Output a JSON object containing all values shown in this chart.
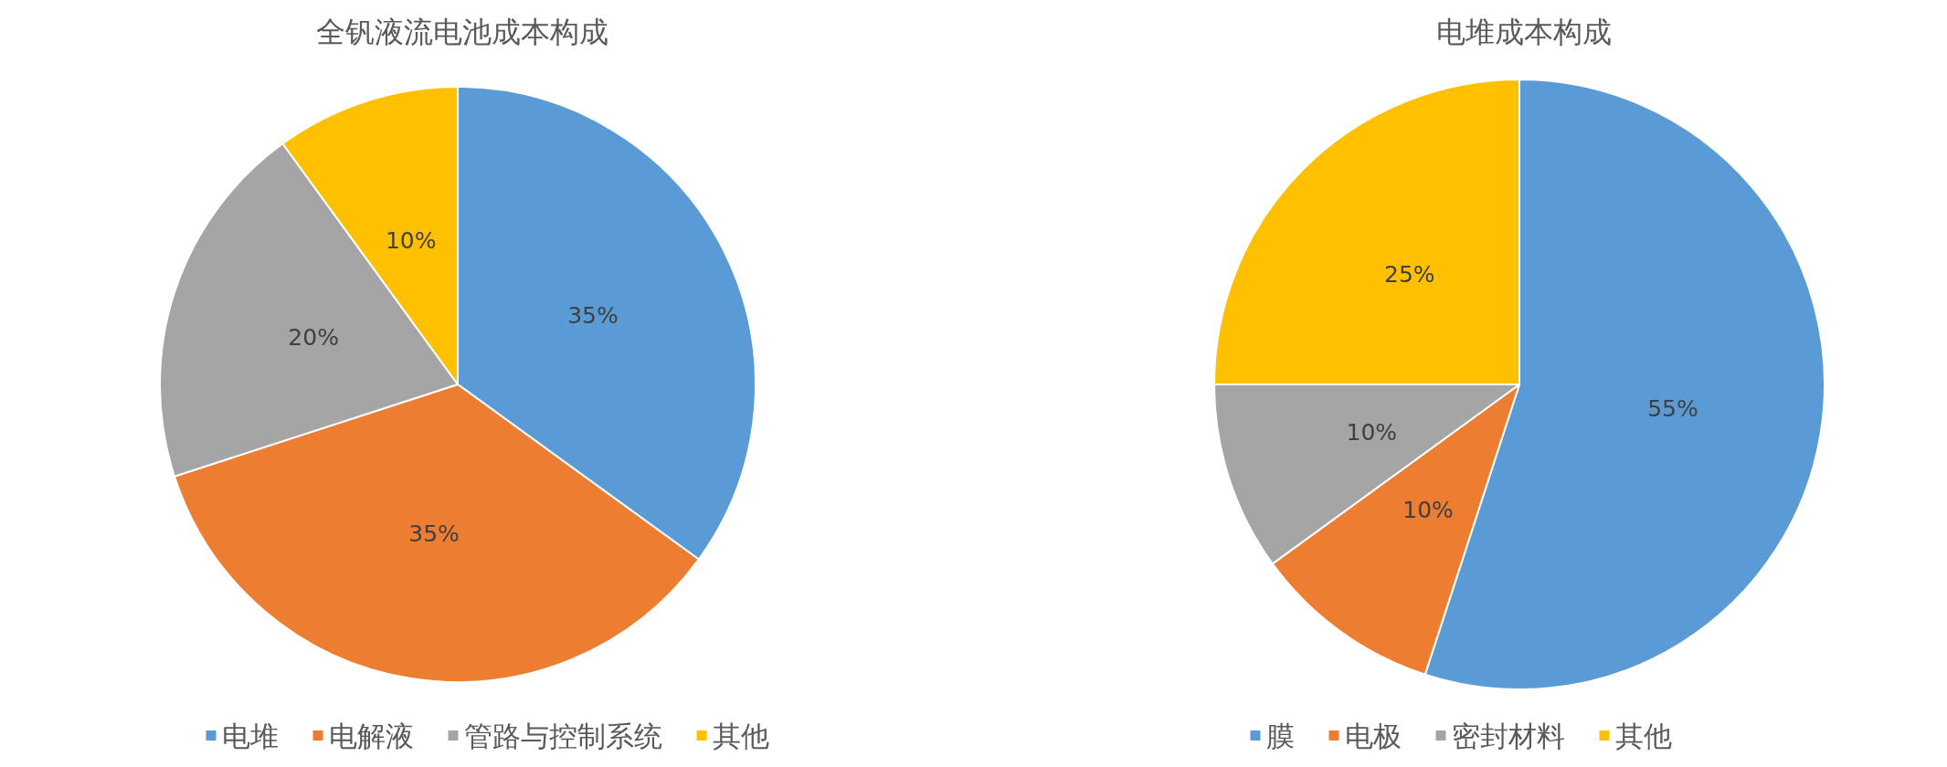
{
  "chart_data": [
    {
      "type": "pie",
      "title": "全钒液流电池成本构成",
      "categories": [
        "电堆",
        "电解液",
        "管路与控制系统",
        "其他"
      ],
      "values": [
        35,
        35,
        20,
        10
      ],
      "colors": [
        "#5b9bd5",
        "#ed7d31",
        "#a5a5a5",
        "#ffc000"
      ],
      "value_labels": [
        "35%",
        "35%",
        "20%",
        "10%"
      ],
      "legend": "bottom"
    },
    {
      "type": "pie",
      "title": "电堆成本构成",
      "categories": [
        "膜",
        "电极",
        "密封材料",
        "其他"
      ],
      "values": [
        55,
        10,
        10,
        25
      ],
      "colors": [
        "#5b9bd5",
        "#ed7d31",
        "#a5a5a5",
        "#ffc000"
      ],
      "value_labels": [
        "55%",
        "10%",
        "10%",
        "25%"
      ],
      "legend": "bottom"
    }
  ]
}
